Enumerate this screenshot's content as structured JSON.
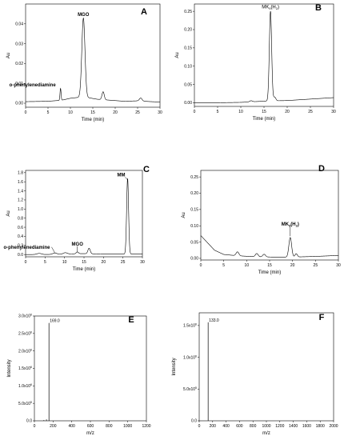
{
  "chart_data": [
    {
      "panel": "A",
      "type": "line",
      "xlabel": "Time (min)",
      "ylabel": "Au",
      "xlim": [
        0,
        30
      ],
      "ylim": [
        -0.002,
        0.05
      ],
      "xticks": [
        "0",
        "5",
        "10",
        "15",
        "20",
        "25",
        "30"
      ],
      "yticks": [
        "0.00",
        "0.01",
        "0.02",
        "0.03",
        "0.04"
      ],
      "baseline": [
        [
          0,
          0.0008
        ],
        [
          3,
          0.0009
        ],
        [
          5,
          0.001
        ],
        [
          8,
          0.0015
        ],
        [
          10,
          0.0025
        ],
        [
          12,
          0.003
        ],
        [
          14,
          0.0028
        ],
        [
          16,
          0.002
        ],
        [
          19,
          0.0015
        ],
        [
          22,
          0.001
        ],
        [
          25,
          0.0012
        ],
        [
          28,
          0.0008
        ],
        [
          30,
          0.0006
        ]
      ],
      "peaks": [
        {
          "x": 7.8,
          "h": 0.006,
          "w": 0.12
        },
        {
          "x": 12.9,
          "h": 0.04,
          "w": 0.35
        },
        {
          "x": 17.3,
          "h": 0.004,
          "w": 0.25
        },
        {
          "x": 25.7,
          "h": 0.0015,
          "w": 0.3
        }
      ],
      "annotations": [
        {
          "text": "MGO",
          "x": 12.9,
          "y": 0.044,
          "bold": true
        },
        {
          "text": "o-phenylenediamine",
          "x": 7.8,
          "y": 0.0085,
          "bold": true
        }
      ]
    },
    {
      "panel": "B",
      "type": "line",
      "xlabel": "Time (min)",
      "ylabel": "Au",
      "xlim": [
        0,
        30
      ],
      "ylim": [
        -0.01,
        0.27
      ],
      "xticks": [
        "0",
        "5",
        "10",
        "15",
        "20",
        "25",
        "30"
      ],
      "yticks": [
        "0.00",
        "0.05",
        "0.10",
        "0.15",
        "0.20",
        "0.25"
      ],
      "baseline": [
        [
          5,
          0.0
        ],
        [
          10,
          0.001
        ],
        [
          13,
          0.003
        ],
        [
          16,
          0.005
        ],
        [
          20,
          0.006
        ],
        [
          25,
          0.01
        ],
        [
          30,
          0.014
        ]
      ],
      "peaks": [
        {
          "x": 12.2,
          "h": 0.003,
          "w": 0.3
        },
        {
          "x": 16.4,
          "h": 0.245,
          "w": 0.25
        },
        {
          "x": 17.3,
          "h": 0.01,
          "w": 0.25
        }
      ],
      "annotations": [
        {
          "text": "MK",
          "sub": "9",
          "tail": "(H",
          "sub2": "2",
          "end": ")",
          "x": 16.4,
          "y": 0.258,
          "bold": false
        }
      ]
    },
    {
      "panel": "C",
      "type": "line",
      "xlabel": "Time (min)",
      "ylabel": "Au",
      "xlim": [
        0,
        30
      ],
      "ylim": [
        -0.05,
        1.85
      ],
      "xticks": [
        "0",
        "5",
        "10",
        "15",
        "20",
        "25",
        "30"
      ],
      "yticks": [
        "0.0",
        "0.2",
        "0.4",
        "0.6",
        "0.8",
        "1.0",
        "1.2",
        "1.4",
        "1.6",
        "1.8"
      ],
      "baseline": [
        [
          0,
          0.0
        ],
        [
          5,
          0.0
        ],
        [
          10,
          0.01
        ],
        [
          15,
          0.02
        ],
        [
          20,
          0.01
        ],
        [
          25,
          0.01
        ],
        [
          30,
          0.01
        ]
      ],
      "peaks": [
        {
          "x": 3.5,
          "h": 0.025,
          "w": 0.6
        },
        {
          "x": 7.5,
          "h": 0.03,
          "w": 0.5
        },
        {
          "x": 10.2,
          "h": 0.03,
          "w": 0.5
        },
        {
          "x": 13.3,
          "h": 0.04,
          "w": 0.3
        },
        {
          "x": 16.3,
          "h": 0.12,
          "w": 0.3
        },
        {
          "x": 26.2,
          "h": 1.66,
          "w": 0.25
        }
      ],
      "annotations": [
        {
          "text": "MM",
          "x": 26.2,
          "y": 1.72,
          "bold": true
        },
        {
          "text": "MGO",
          "x": 13.3,
          "y": 0.2,
          "bold": true
        },
        {
          "text": "o-phenylenediamine",
          "x": 7.5,
          "y": 0.13,
          "bold": true
        }
      ]
    },
    {
      "panel": "D",
      "type": "line",
      "xlabel": "Time (min)",
      "ylabel": "Au",
      "xlim": [
        0,
        30
      ],
      "ylim": [
        -0.005,
        0.27
      ],
      "xticks": [
        "0",
        "5",
        "10",
        "15",
        "20",
        "25",
        "30"
      ],
      "yticks": [
        "0.00",
        "0.05",
        "0.10",
        "0.15",
        "0.20",
        "0.25"
      ],
      "baseline": [
        [
          0,
          0.07
        ],
        [
          1,
          0.055
        ],
        [
          2,
          0.04
        ],
        [
          3,
          0.025
        ],
        [
          5,
          0.012
        ],
        [
          8,
          0.008
        ],
        [
          12,
          0.005
        ],
        [
          16,
          0.004
        ],
        [
          20,
          0.004
        ],
        [
          25,
          0.006
        ],
        [
          30,
          0.009
        ]
      ],
      "peaks": [
        {
          "x": 8,
          "h": 0.012,
          "w": 0.3
        },
        {
          "x": 12.2,
          "h": 0.01,
          "w": 0.3
        },
        {
          "x": 13.8,
          "h": 0.008,
          "w": 0.3
        },
        {
          "x": 19.5,
          "h": 0.06,
          "w": 0.3
        },
        {
          "x": 20.8,
          "h": 0.01,
          "w": 0.25
        }
      ],
      "annotations": [
        {
          "text": "MK",
          "sub": "9",
          "tail": "(H",
          "sub2": "2",
          "end": ")",
          "x": 19.5,
          "y": 0.1,
          "bold": true
        }
      ]
    },
    {
      "panel": "E",
      "type": "bar",
      "xlabel": "m/z",
      "ylabel": "Intensity",
      "xlim": [
        0,
        1300
      ],
      "ylim": [
        0,
        3000000.0
      ],
      "xticks": [
        "0",
        "200",
        "400",
        "600",
        "800",
        "1000",
        "1200"
      ],
      "yticks": [
        {
          "m": "0.0",
          "e": ""
        },
        {
          "m": "5.0x10",
          "e": "5"
        },
        {
          "m": "1.0x10",
          "e": "6"
        },
        {
          "m": "1.5x10",
          "e": "6"
        },
        {
          "m": "2.0x10",
          "e": "6"
        },
        {
          "m": "2.5x10",
          "e": "6"
        },
        {
          "m": "3.0x10",
          "e": "6"
        }
      ],
      "bars": [
        {
          "x": 110,
          "y": 20000
        },
        {
          "x": 140,
          "y": 40000
        },
        {
          "x": 169,
          "y": 2800000.0
        }
      ],
      "label": {
        "text": "169.0",
        "x": 169,
        "y": 2800000.0
      }
    },
    {
      "panel": "F",
      "type": "bar",
      "xlabel": "m/z",
      "ylabel": "Intensity",
      "xlim": [
        0,
        2000
      ],
      "ylim": [
        0,
        1700000.0
      ],
      "xticks": [
        "0",
        "200",
        "400",
        "600",
        "800",
        "1000",
        "1200",
        "1400",
        "1600",
        "1800",
        "2000"
      ],
      "yticks": [
        {
          "m": "0.0",
          "e": ""
        },
        {
          "m": "5.0x10",
          "e": "5"
        },
        {
          "m": "1.0x10",
          "e": "6"
        },
        {
          "m": "1.5x10",
          "e": "6"
        }
      ],
      "bars": [
        {
          "x": 133,
          "y": 1550000.0
        }
      ],
      "label": {
        "text": "133.0",
        "x": 133,
        "y": 1550000.0
      }
    }
  ]
}
